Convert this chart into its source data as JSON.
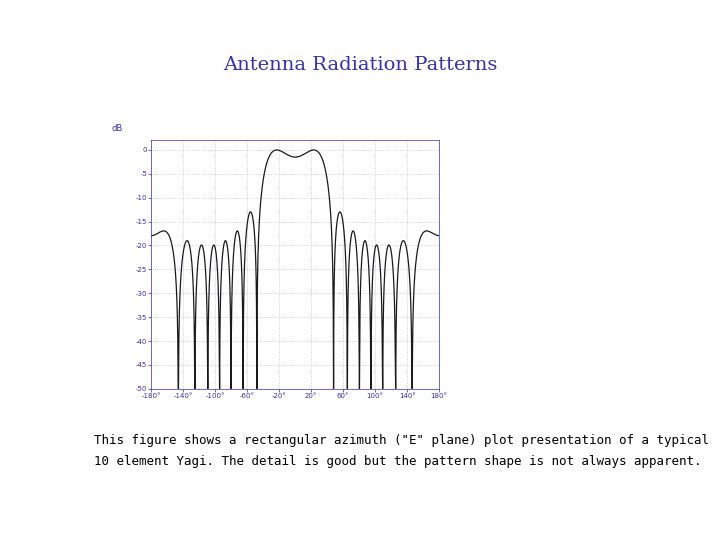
{
  "title": "Antenna Radiation Patterns",
  "title_color": "#3333aa",
  "title_fontsize": 14,
  "title_fontweight": "normal",
  "caption_line1": "This figure shows a rectangular azimuth (\"E\" plane) plot presentation of a typical",
  "caption_line2": "10 element Yagi. The detail is good but the pattern shape is not always apparent.",
  "caption_fontsize": 9,
  "caption_color": "#000000",
  "plot_bg_color": "#ffffff",
  "fig_bg_color": "#ffffff",
  "line_color": "#1a1a1a",
  "line_width": 0.9,
  "grid_color": "#aaaacc",
  "axis_color": "#3333aa",
  "tick_color": "#3333aa",
  "tick_fontsize": 5,
  "ylabel_text": "dB",
  "ylabel_color": "#3333aa",
  "ylabel_fontsize": 6,
  "xlim": [
    -180,
    180
  ],
  "ylim": [
    -50,
    2
  ],
  "xticks": [
    -180,
    -140,
    -100,
    -60,
    -20,
    20,
    60,
    100,
    140,
    180
  ],
  "yticks": [
    -50,
    -45,
    -40,
    -35,
    -30,
    -25,
    -20,
    -15,
    -10,
    -5,
    0
  ]
}
